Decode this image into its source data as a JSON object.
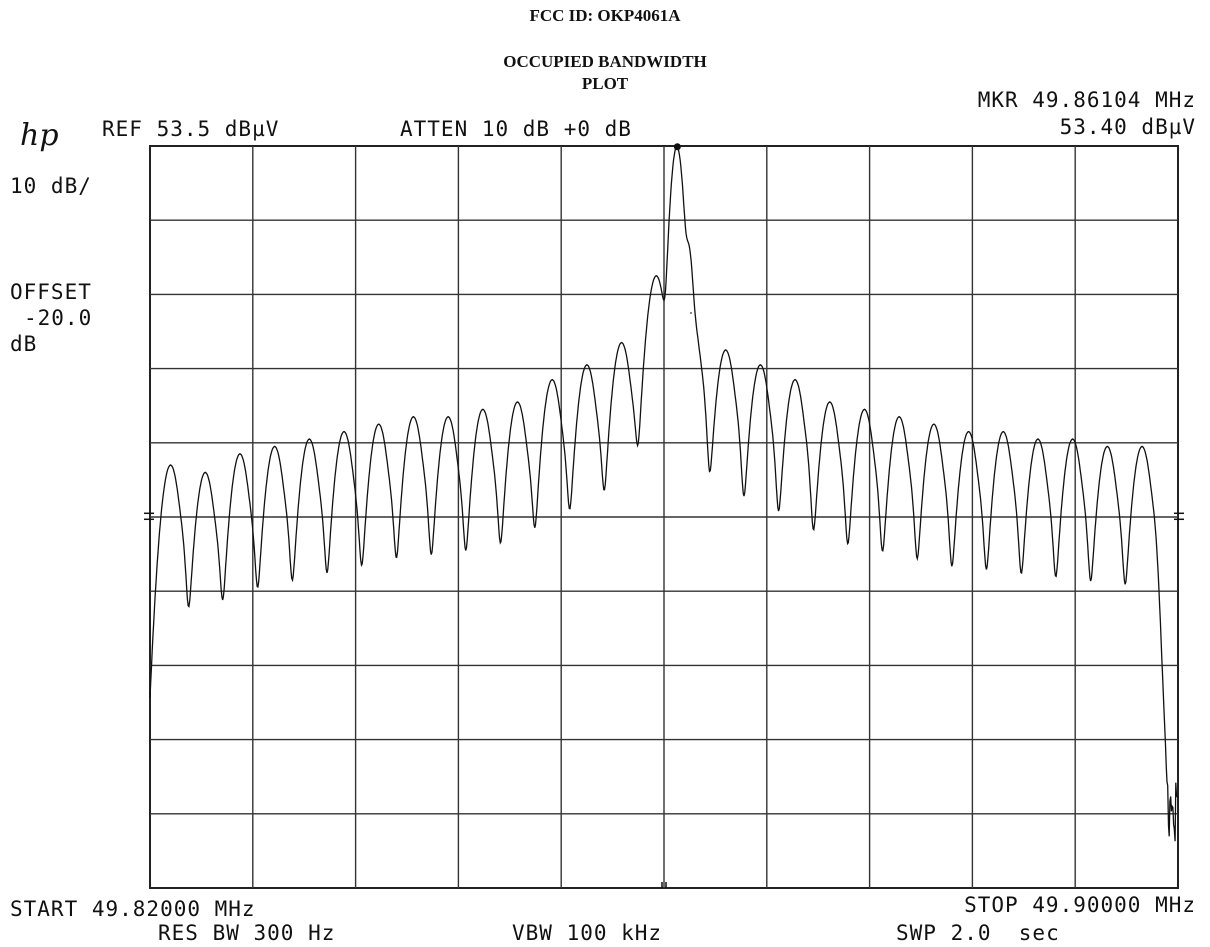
{
  "header": {
    "fcc_id": "FCC ID: OKP4061A",
    "title_line1": "OCCUPIED BANDWIDTH",
    "title_line2": "PLOT"
  },
  "instrument": {
    "logo": "hp",
    "ref": "REF 53.5 dBµV",
    "atten": "ATTEN 10 dB +0 dB",
    "marker_freq": "MKR 49.86104 MHz",
    "marker_level": "53.40 dBµV",
    "scale": "10 dB/",
    "offset_label": "OFFSET",
    "offset_value": "-20.0",
    "offset_unit": "dB",
    "start": "START 49.82000 MHz",
    "stop": "STOP 49.90000 MHz",
    "res_bw": "RES BW 300 Hz",
    "vbw": "VBW 100 kHz",
    "swp": "SWP 2.0  sec"
  },
  "chart_data": {
    "type": "line",
    "x_unit": "MHz",
    "y_unit": "dBµV",
    "xlim": [
      49.82,
      49.9
    ],
    "ylim": [
      -46.5,
      53.5
    ],
    "grid": true,
    "x_divisions": 10,
    "y_divisions": 10,
    "marker": {
      "x": 49.86104,
      "y": 53.4
    },
    "series": [
      {
        "peaks_x": [
          49.8216,
          49.8243,
          49.827,
          49.8297,
          49.8324,
          49.8351,
          49.8378,
          49.8405,
          49.8432,
          49.8459,
          49.8486,
          49.8513,
          49.854,
          49.8567,
          49.8594,
          49.861,
          49.8621,
          49.8648,
          49.8675,
          49.8702,
          49.8729,
          49.8756,
          49.8783,
          49.881,
          49.8837,
          49.8864,
          49.8891,
          49.8918,
          49.8945,
          49.8972
        ],
        "peaks_y": [
          10.5,
          9.5,
          12,
          13,
          14,
          15,
          16,
          17,
          17,
          18,
          19,
          22,
          24,
          27,
          36,
          53.4,
          31,
          26,
          24,
          22,
          19,
          18,
          17,
          16,
          15,
          15,
          14,
          14,
          13,
          13
        ]
      }
    ]
  }
}
